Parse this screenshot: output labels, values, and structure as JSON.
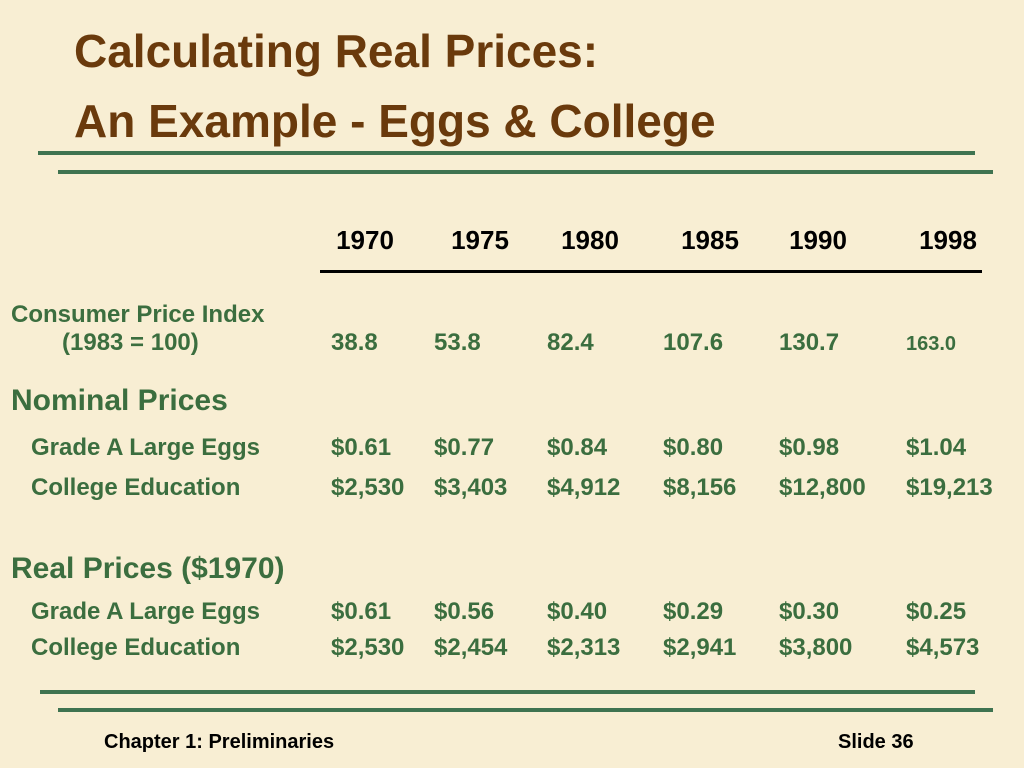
{
  "title": [
    "Calculating Real Prices:",
    "An Example - Eggs & College"
  ],
  "years": [
    "1970",
    "1975",
    "1980",
    "1985",
    "1990",
    "1998"
  ],
  "cpi": {
    "label": "Consumer Price Index",
    "sublabel": "(1983 = 100)",
    "values": [
      "38.8",
      "53.8",
      "82.4",
      "107.6",
      "130.7",
      "163.0"
    ]
  },
  "nominal": {
    "heading": "Nominal Prices",
    "rows": [
      {
        "label": "Grade A Large Eggs",
        "values": [
          "$0.61",
          "$0.77",
          "$0.84",
          "$0.80",
          "$0.98",
          "$1.04"
        ]
      },
      {
        "label": "College Education",
        "values": [
          "$2,530",
          "$3,403",
          "$4,912",
          "$8,156",
          "$12,800",
          "$19,213"
        ]
      }
    ]
  },
  "real": {
    "heading": "Real Prices ($1970)",
    "rows": [
      {
        "label": "Grade A Large Eggs",
        "values": [
          "$0.61",
          "$0.56",
          "$0.40",
          "$0.29",
          "$0.30",
          "$0.25"
        ]
      },
      {
        "label": "College Education",
        "values": [
          "$2,530",
          "$2,454",
          "$2,313",
          "$2,941",
          "$3,800",
          "$4,573"
        ]
      }
    ]
  },
  "footer": {
    "left": "Chapter 1: Preliminaries",
    "right": "Slide 36"
  }
}
